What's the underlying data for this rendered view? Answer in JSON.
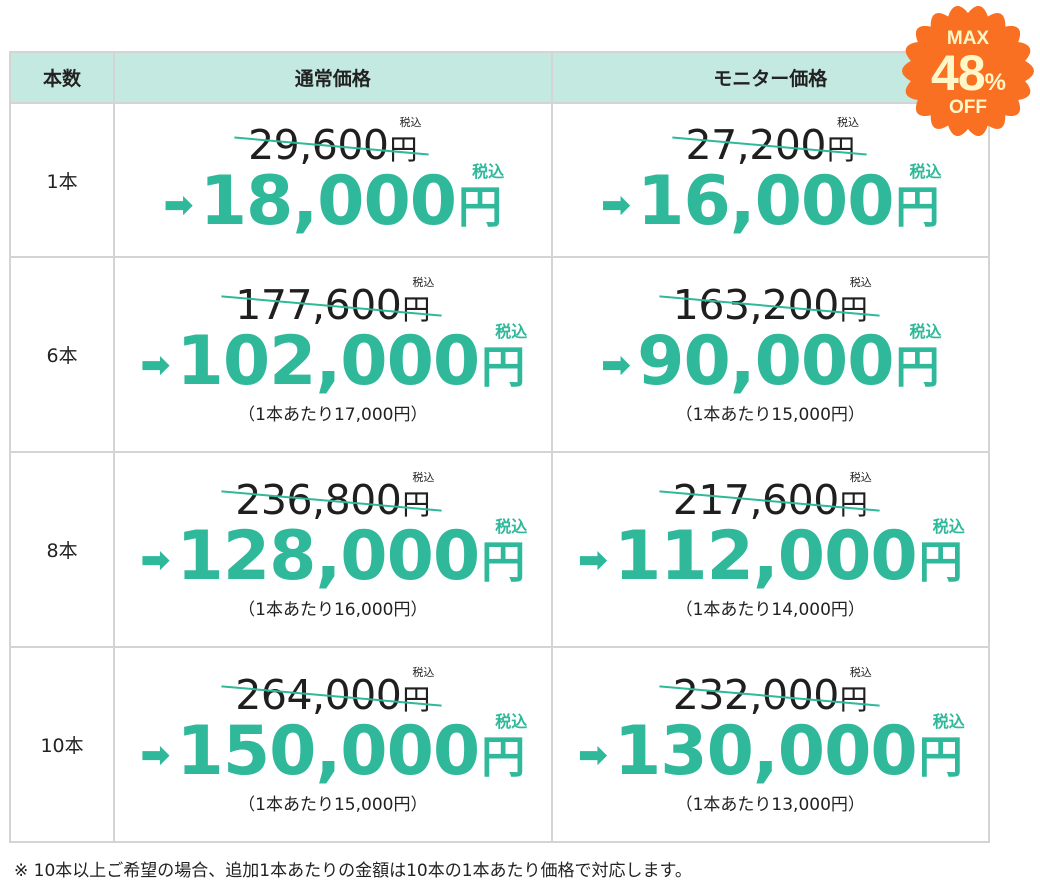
{
  "header": {
    "qty": "本数",
    "regular": "通常価格",
    "monitor": "モニター価格"
  },
  "badge": {
    "max": "MAX",
    "percent": "48",
    "percent_sign": "%",
    "off": "OFF",
    "color": "#f97022"
  },
  "tax_label": "税込",
  "yen": "円",
  "arrow": "➡",
  "accent_color": "#2fb89a",
  "header_color": "#c3e9e0",
  "rows": [
    {
      "qty": "1本",
      "regular": {
        "old": "29,600",
        "new": "18,000",
        "per_unit": ""
      },
      "monitor": {
        "old": "27,200",
        "new": "16,000",
        "per_unit": ""
      }
    },
    {
      "qty": "6本",
      "regular": {
        "old": "177,600",
        "new": "102,000",
        "per_unit": "（1本あたり17,000円）"
      },
      "monitor": {
        "old": "163,200",
        "new": "90,000",
        "per_unit": "（1本あたり15,000円）"
      }
    },
    {
      "qty": "8本",
      "regular": {
        "old": "236,800",
        "new": "128,000",
        "per_unit": "（1本あたり16,000円）"
      },
      "monitor": {
        "old": "217,600",
        "new": "112,000",
        "per_unit": "（1本あたり14,000円）"
      }
    },
    {
      "qty": "10本",
      "regular": {
        "old": "264,000",
        "new": "150,000",
        "per_unit": "（1本あたり15,000円）"
      },
      "monitor": {
        "old": "232,000",
        "new": "130,000",
        "per_unit": "（1本あたり13,000円）"
      }
    }
  ],
  "footnote": "※ 10本以上ご希望の場合、追加1本あたりの金額は10本の1本あたり価格で対応します。"
}
